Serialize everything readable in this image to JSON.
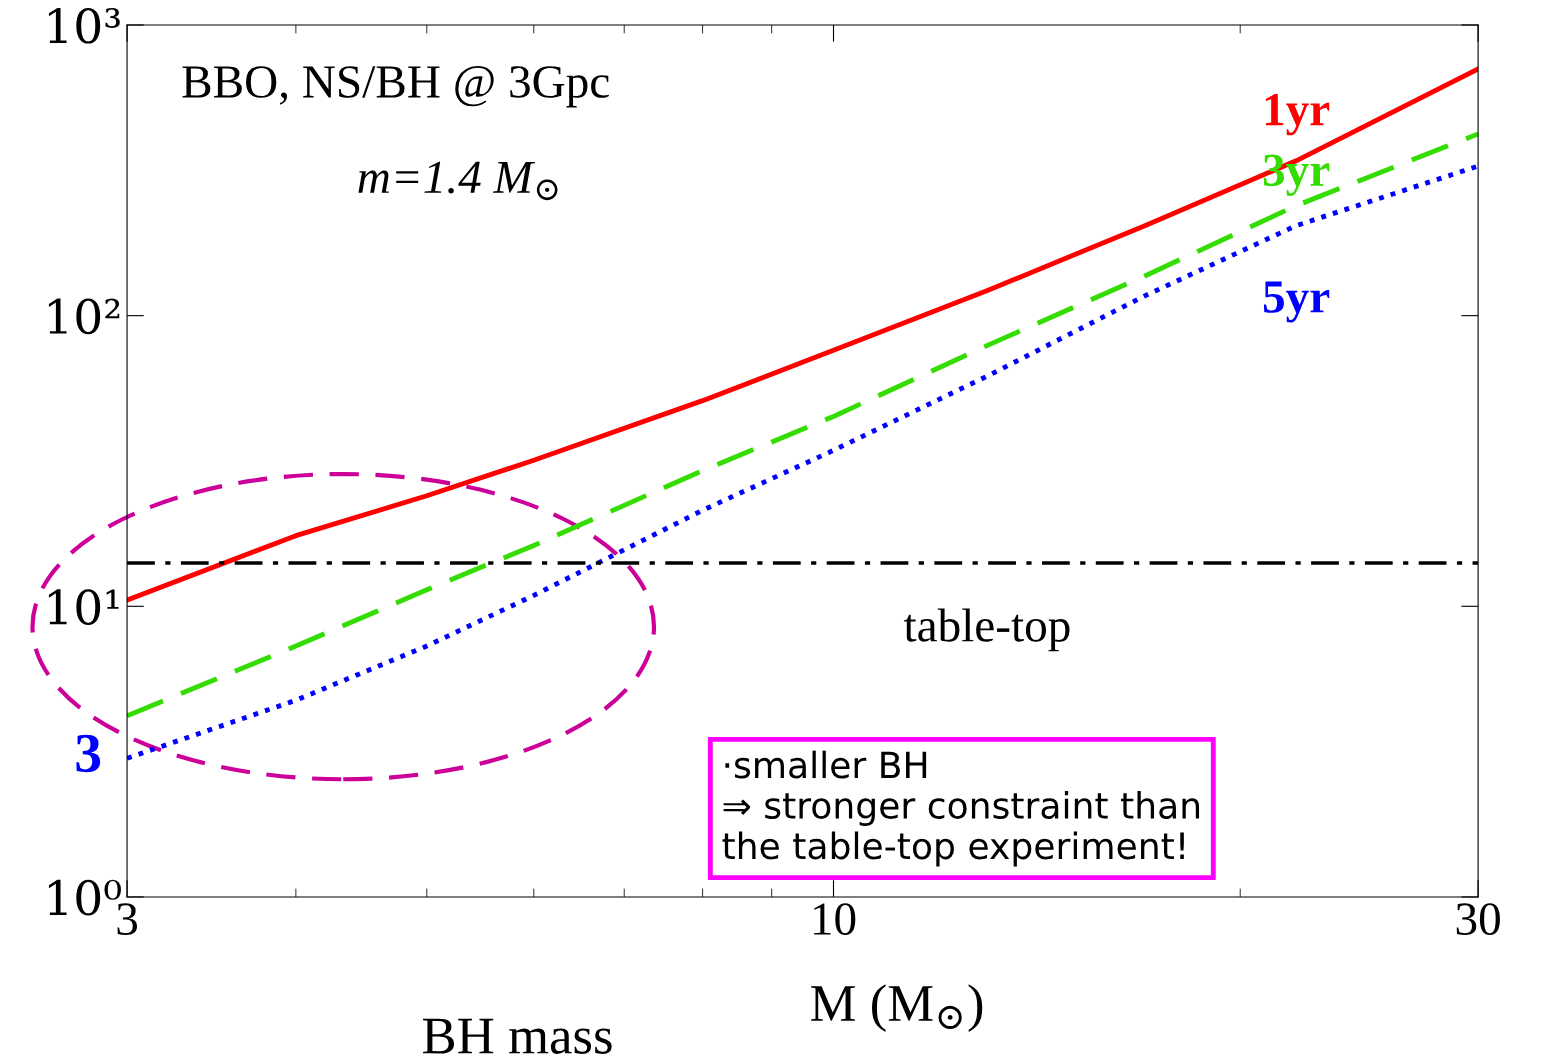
{
  "chart_data": {
    "type": "line",
    "xlabel": "M (M$_{⊙}$)",
    "log": "xy",
    "x": [
      3,
      4,
      5,
      6,
      8,
      10,
      13,
      17,
      22,
      30
    ],
    "series": [
      {
        "name": "1yr",
        "color": "#ff0000",
        "line_style": "solid",
        "values": [
          10.5,
          17.5,
          24,
          31.8,
          51,
          76,
          122,
          204,
          341,
          706
        ]
      },
      {
        "name": "3yr",
        "color": "#33dd00",
        "line_style": "dashed",
        "values": [
          4.2,
          7.3,
          11.4,
          16.2,
          29.3,
          45,
          79,
          137,
          239,
          422
        ]
      },
      {
        "name": "5yr",
        "color": "#0000ff",
        "line_style": "dotted",
        "values": [
          3,
          4.75,
          7.3,
          10.9,
          21.4,
          34.4,
          62,
          117,
          204,
          327
        ]
      }
    ],
    "xlim": [
      3,
      30
    ],
    "xticks": [
      3,
      10,
      30
    ],
    "ylim": [
      1,
      1000
    ],
    "yticks": [
      {
        "value": 1,
        "label": "10⁰"
      },
      {
        "value": 10,
        "label": "10¹"
      },
      {
        "value": 100,
        "label": "10²"
      },
      {
        "value": 1000,
        "label": "10³"
      }
    ],
    "ref_lines": [
      {
        "axis": "y",
        "value": 14.1,
        "label": "table-top",
        "color": "#000000",
        "line_style": "dashdot"
      }
    ],
    "annotations": [
      "BBO, NS/BH @ 3Gpc",
      "m=1.4 M$_{⊙}$",
      {
        "text": "3",
        "x": 3,
        "y": 3
      },
      "BH mass",
      "·smaller BH\n⇒ stronger constraint than\nthe table-top experiment!"
    ],
    "grid": false,
    "legend": false,
    "marker": "none"
  }
}
